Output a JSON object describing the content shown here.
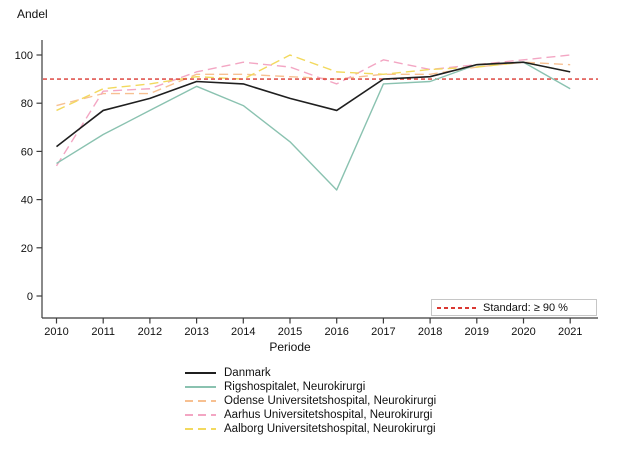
{
  "chart_data": {
    "type": "line",
    "title": "",
    "ylabel": "Andel",
    "xlabel": "Periode",
    "categories": [
      "2010",
      "2011",
      "2012",
      "2013",
      "2014",
      "2015",
      "2016",
      "2017",
      "2018",
      "2019",
      "2020",
      "2021"
    ],
    "y_ticks": [
      0,
      20,
      40,
      60,
      80,
      100
    ],
    "ylim": [
      0,
      105
    ],
    "grid": false,
    "legend_position": "bottom-center",
    "series": [
      {
        "name": "Danmark",
        "color": "#1f1f1f",
        "dash": "solid",
        "values": [
          62,
          77,
          82,
          89,
          88,
          82,
          77,
          90,
          91,
          96,
          97,
          93
        ]
      },
      {
        "name": "Rigshospitalet, Neurokirurgi",
        "color": "#8ac2b0",
        "dash": "solid",
        "values": [
          55,
          67,
          77,
          87,
          79,
          64,
          44,
          88,
          89,
          96,
          97,
          86
        ]
      },
      {
        "name": "Odense Universitetshospital, Neurokirurgi",
        "color": "#f7c091",
        "dash": "dashed",
        "values": [
          79,
          84,
          84,
          92,
          92,
          91,
          90,
          92,
          92,
          95,
          97,
          96
        ]
      },
      {
        "name": "Aarhus Universitetshospital, Neurokirurgi",
        "color": "#f3a6c3",
        "dash": "dashed",
        "values": [
          54,
          85,
          86,
          93,
          97,
          95,
          88,
          98,
          94,
          96,
          98,
          100
        ]
      },
      {
        "name": "Aalborg Universitetshospital, Neurokirurgi",
        "color": "#f2d95e",
        "dash": "dashed",
        "values": [
          77,
          86,
          88,
          91,
          90,
          100,
          93,
          92,
          94,
          95,
          97,
          93
        ]
      }
    ],
    "reference_line": {
      "value": 90,
      "label": "Standard: ≥ 90 %",
      "color": "#da3832",
      "dash": "short-dashed"
    }
  }
}
